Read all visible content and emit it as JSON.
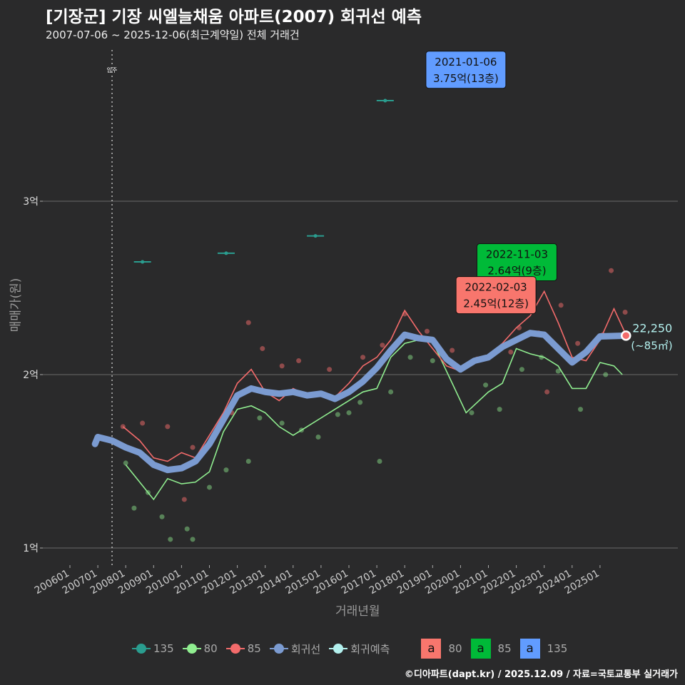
{
  "title": "[기장군] 기장 씨엘늘채움 아파트(2007) 회귀선 예측",
  "subtitle": "2007-07-06 ~ 2025-12-06(최근계약일) 전체 거래건",
  "footer": "©디아파트(dapt.kr) / 2025.12.09 / 자료=국토교통부 실거래가",
  "colors": {
    "c135": "#2a9d8f",
    "c80": "#90ee90",
    "c85": "#f36b6b",
    "reg": "#7b9bd1",
    "pred": "#b3f0ee",
    "box80": "#f8766d",
    "box85": "#00ba38",
    "box135": "#619cff"
  },
  "legend": {
    "items": [
      "135",
      "80",
      "85",
      "회귀선",
      "회귀예측"
    ],
    "box_letter": "a",
    "boxes": [
      "80",
      "85",
      "135"
    ]
  },
  "chart_data": {
    "type": "line",
    "title": "[기장군] 기장 씨엘늘채움 아파트(2007) 회귀선 예측",
    "xlabel": "거래년월",
    "ylabel": "매매가(원)",
    "xlim": [
      2005.6,
      2027.2
    ],
    "ylim": [
      9500,
      39000
    ],
    "x_ticks": [
      "200601",
      "200701",
      "200801",
      "200901",
      "201001",
      "201101",
      "201201",
      "201301",
      "201401",
      "201501",
      "201601",
      "201701",
      "201801",
      "201901",
      "202001",
      "202101",
      "202201",
      "202301",
      "202401",
      "202501"
    ],
    "y_ticks": [
      {
        "v": 10000,
        "label": "1억"
      },
      {
        "v": 20000,
        "label": "2억"
      },
      {
        "v": 30000,
        "label": "3억"
      }
    ],
    "vline": {
      "x": 2007.51,
      "label": "입주"
    },
    "regression": [
      [
        2006.9,
        16000
      ],
      [
        2007.0,
        16400
      ],
      [
        2007.5,
        16200
      ],
      [
        2008,
        15800
      ],
      [
        2008.5,
        15500
      ],
      [
        2009,
        14800
      ],
      [
        2009.5,
        14500
      ],
      [
        2010,
        14600
      ],
      [
        2010.5,
        15000
      ],
      [
        2011,
        16000
      ],
      [
        2011.5,
        17400
      ],
      [
        2012,
        18800
      ],
      [
        2012.5,
        19200
      ],
      [
        2013,
        19000
      ],
      [
        2013.5,
        18900
      ],
      [
        2014,
        19000
      ],
      [
        2014.5,
        18800
      ],
      [
        2015,
        18900
      ],
      [
        2015.5,
        18600
      ],
      [
        2016,
        19000
      ],
      [
        2016.5,
        19600
      ],
      [
        2017,
        20400
      ],
      [
        2017.5,
        21400
      ],
      [
        2018,
        22300
      ],
      [
        2018.5,
        22100
      ],
      [
        2019,
        22000
      ],
      [
        2019.5,
        20900
      ],
      [
        2020,
        20300
      ],
      [
        2020.5,
        20800
      ],
      [
        2021,
        21000
      ],
      [
        2021.5,
        21600
      ],
      [
        2022,
        22000
      ],
      [
        2022.5,
        22400
      ],
      [
        2023,
        22300
      ],
      [
        2023.5,
        21500
      ],
      [
        2024,
        20700
      ],
      [
        2024.5,
        21300
      ],
      [
        2025,
        22200
      ],
      [
        2025.93,
        22250
      ]
    ],
    "line85": [
      [
        2007.9,
        17000
      ],
      [
        2008.5,
        16200
      ],
      [
        2009,
        15200
      ],
      [
        2009.5,
        15000
      ],
      [
        2010,
        15500
      ],
      [
        2010.5,
        15200
      ],
      [
        2011,
        16500
      ],
      [
        2011.5,
        17800
      ],
      [
        2012,
        19500
      ],
      [
        2012.5,
        20300
      ],
      [
        2013,
        19000
      ],
      [
        2013.5,
        18500
      ],
      [
        2014,
        19200
      ],
      [
        2014.5,
        18800
      ],
      [
        2015,
        19000
      ],
      [
        2015.5,
        18700
      ],
      [
        2016,
        19500
      ],
      [
        2016.5,
        20500
      ],
      [
        2017,
        21000
      ],
      [
        2017.5,
        22000
      ],
      [
        2018,
        23700
      ],
      [
        2018.5,
        22500
      ],
      [
        2019,
        21500
      ],
      [
        2019.5,
        20500
      ],
      [
        2020,
        20200
      ],
      [
        2020.5,
        20800
      ],
      [
        2021,
        21100
      ],
      [
        2021.5,
        21800
      ],
      [
        2022,
        22700
      ],
      [
        2022.5,
        23400
      ],
      [
        2023,
        24800
      ],
      [
        2023.5,
        23000
      ],
      [
        2024,
        21000
      ],
      [
        2024.5,
        20800
      ],
      [
        2025,
        22000
      ],
      [
        2025.5,
        23800
      ],
      [
        2025.93,
        22300
      ]
    ],
    "line80": [
      [
        2008.0,
        14800
      ],
      [
        2008.5,
        13800
      ],
      [
        2009,
        12800
      ],
      [
        2009.5,
        14000
      ],
      [
        2010,
        13700
      ],
      [
        2010.5,
        13800
      ],
      [
        2011,
        14400
      ],
      [
        2011.5,
        16700
      ],
      [
        2012,
        18000
      ],
      [
        2012.5,
        18200
      ],
      [
        2013,
        17800
      ],
      [
        2013.5,
        17000
      ],
      [
        2014,
        16500
      ],
      [
        2014.5,
        17000
      ],
      [
        2015,
        17500
      ],
      [
        2015.5,
        18000
      ],
      [
        2016,
        18500
      ],
      [
        2016.5,
        19000
      ],
      [
        2017,
        19200
      ],
      [
        2017.5,
        21000
      ],
      [
        2018,
        21800
      ],
      [
        2018.5,
        22000
      ],
      [
        2019,
        21900
      ],
      [
        2020.2,
        17800
      ],
      [
        2021,
        19000
      ],
      [
        2021.5,
        19500
      ],
      [
        2022,
        21500
      ],
      [
        2022.5,
        21200
      ],
      [
        2023,
        21000
      ],
      [
        2023.5,
        20500
      ],
      [
        2024,
        19200
      ],
      [
        2024.5,
        19200
      ],
      [
        2025,
        20700
      ],
      [
        2025.5,
        20500
      ],
      [
        2025.8,
        20000
      ]
    ],
    "points135": [
      [
        2008.6,
        26500
      ],
      [
        2011.6,
        27000
      ],
      [
        2014.8,
        28000
      ],
      [
        2017.3,
        35800
      ],
      [
        2021.1,
        37500
      ]
    ],
    "points85": [
      [
        2007.9,
        17000
      ],
      [
        2008.6,
        17200
      ],
      [
        2009.5,
        17000
      ],
      [
        2010.4,
        15800
      ],
      [
        2010.1,
        12800
      ],
      [
        2011.3,
        16800
      ],
      [
        2011.8,
        17800
      ],
      [
        2012.4,
        23000
      ],
      [
        2012.9,
        21500
      ],
      [
        2013.6,
        20500
      ],
      [
        2014.2,
        20800
      ],
      [
        2015.3,
        20300
      ],
      [
        2016.5,
        21000
      ],
      [
        2017.2,
        21700
      ],
      [
        2018,
        23500
      ],
      [
        2018.8,
        22500
      ],
      [
        2019.7,
        21400
      ],
      [
        2020.6,
        20900
      ],
      [
        2021.8,
        21300
      ],
      [
        2022.1,
        22700
      ],
      [
        2022.8,
        22400
      ],
      [
        2023.2,
        25600
      ],
      [
        2023.6,
        24000
      ],
      [
        2023.1,
        19000
      ],
      [
        2024.2,
        21800
      ],
      [
        2025.1,
        22300
      ],
      [
        2025.4,
        26000
      ],
      [
        2025.9,
        23600
      ]
    ],
    "points80": [
      [
        2008,
        14900
      ],
      [
        2008.3,
        12300
      ],
      [
        2008.8,
        13200
      ],
      [
        2009.3,
        11800
      ],
      [
        2009.6,
        10500
      ],
      [
        2010.2,
        11100
      ],
      [
        2010.4,
        10500
      ],
      [
        2011,
        13500
      ],
      [
        2011.6,
        14500
      ],
      [
        2012.4,
        15000
      ],
      [
        2012.8,
        17500
      ],
      [
        2013.6,
        17200
      ],
      [
        2014.3,
        16800
      ],
      [
        2014.9,
        16400
      ],
      [
        2015.6,
        17700
      ],
      [
        2016,
        17800
      ],
      [
        2016.4,
        18400
      ],
      [
        2017.1,
        15000
      ],
      [
        2017.5,
        19000
      ],
      [
        2018.2,
        21000
      ],
      [
        2019,
        20800
      ],
      [
        2020.4,
        17800
      ],
      [
        2020.9,
        19400
      ],
      [
        2021.4,
        18000
      ],
      [
        2022.2,
        20300
      ],
      [
        2022.9,
        21000
      ],
      [
        2023.5,
        20200
      ],
      [
        2024.3,
        18000
      ],
      [
        2025.2,
        20000
      ]
    ],
    "annotations": [
      {
        "date": "2021-01-06",
        "value": "3.75억(13층)",
        "x": 2021.01,
        "y": 37500,
        "color": "#619cff"
      },
      {
        "date": "2022-11-03",
        "value": "2.64억(9층)",
        "x": 2022.84,
        "y": 26400,
        "color": "#00ba38"
      },
      {
        "date": "2022-02-03",
        "value": "2.45억(12층)",
        "x": 2022.09,
        "y": 24500,
        "color": "#f8766d"
      }
    ],
    "prediction": {
      "x": 2025.93,
      "y": 22250,
      "label": "22,250",
      "sub": "(~85㎡)"
    }
  }
}
